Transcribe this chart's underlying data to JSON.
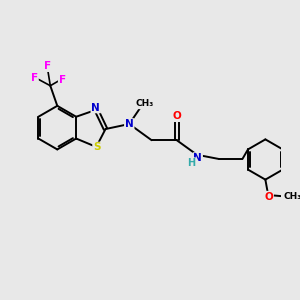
{
  "bg_color": "#e8e8e8",
  "bond_color": "#000000",
  "atom_colors": {
    "N": "#0000cc",
    "S": "#cccc00",
    "O": "#ff0000",
    "F": "#ff00ff",
    "C": "#000000",
    "H": "#33aaaa"
  },
  "figsize": [
    3.0,
    3.0
  ],
  "dpi": 100
}
